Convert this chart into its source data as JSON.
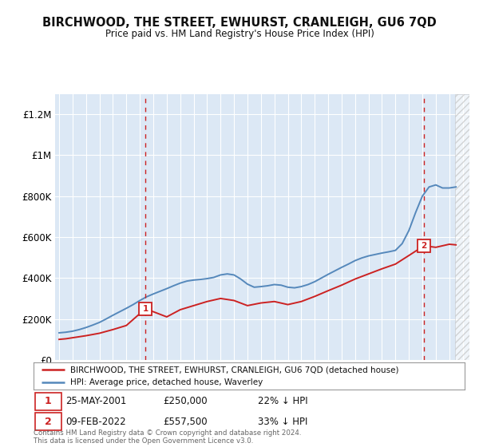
{
  "title": "BIRCHWOOD, THE STREET, EWHURST, CRANLEIGH, GU6 7QD",
  "subtitle": "Price paid vs. HM Land Registry's House Price Index (HPI)",
  "background_color": "#ffffff",
  "plot_bg_color": "#dce8f5",
  "grid_color": "#ffffff",
  "hpi_color": "#5588bb",
  "price_color": "#cc2222",
  "annotation1_date": "25-MAY-2001",
  "annotation1_price": "£250,000",
  "annotation1_label": "22% ↓ HPI",
  "annotation2_date": "09-FEB-2022",
  "annotation2_price": "£557,500",
  "annotation2_label": "33% ↓ HPI",
  "legend_line1": "BIRCHWOOD, THE STREET, EWHURST, CRANLEIGH, GU6 7QD (detached house)",
  "legend_line2": "HPI: Average price, detached house, Waverley",
  "footer": "Contains HM Land Registry data © Crown copyright and database right 2024.\nThis data is licensed under the Open Government Licence v3.0.",
  "ylim": [
    0,
    1300000
  ],
  "yticks": [
    0,
    200000,
    400000,
    600000,
    800000,
    1000000,
    1200000
  ],
  "ytick_labels": [
    "£0",
    "£200K",
    "£400K",
    "£600K",
    "£800K",
    "£1M",
    "£1.2M"
  ],
  "hpi_x": [
    1995.0,
    1995.5,
    1996.0,
    1996.5,
    1997.0,
    1997.5,
    1998.0,
    1998.5,
    1999.0,
    1999.5,
    2000.0,
    2000.5,
    2001.0,
    2001.5,
    2002.0,
    2002.5,
    2003.0,
    2003.5,
    2004.0,
    2004.5,
    2005.0,
    2005.5,
    2006.0,
    2006.5,
    2007.0,
    2007.5,
    2008.0,
    2008.5,
    2009.0,
    2009.5,
    2010.0,
    2010.5,
    2011.0,
    2011.5,
    2012.0,
    2012.5,
    2013.0,
    2013.5,
    2014.0,
    2014.5,
    2015.0,
    2015.5,
    2016.0,
    2016.5,
    2017.0,
    2017.5,
    2018.0,
    2018.5,
    2019.0,
    2019.5,
    2020.0,
    2020.5,
    2021.0,
    2021.5,
    2022.0,
    2022.5,
    2023.0,
    2023.5,
    2024.0,
    2024.5
  ],
  "hpi_y": [
    132000,
    135000,
    140000,
    148000,
    158000,
    170000,
    183000,
    200000,
    218000,
    235000,
    252000,
    270000,
    290000,
    308000,
    322000,
    335000,
    348000,
    362000,
    375000,
    385000,
    390000,
    393000,
    397000,
    403000,
    415000,
    420000,
    415000,
    395000,
    370000,
    355000,
    358000,
    362000,
    368000,
    365000,
    355000,
    352000,
    358000,
    368000,
    382000,
    400000,
    418000,
    435000,
    452000,
    468000,
    485000,
    498000,
    508000,
    515000,
    522000,
    528000,
    535000,
    568000,
    632000,
    720000,
    800000,
    845000,
    855000,
    840000,
    840000,
    845000
  ],
  "price_x": [
    1995.0,
    1995.5,
    1996.0,
    1997.0,
    1998.0,
    1999.0,
    2000.0,
    2001.416,
    2003.0,
    2004.0,
    2005.0,
    2006.0,
    2007.0,
    2008.0,
    2009.0,
    2010.0,
    2011.0,
    2012.0,
    2013.0,
    2014.0,
    2015.0,
    2016.0,
    2017.0,
    2018.0,
    2019.0,
    2020.0,
    2021.0,
    2022.116,
    2023.0,
    2024.0,
    2024.5
  ],
  "price_y": [
    100000,
    103000,
    108000,
    118000,
    130000,
    148000,
    168000,
    250000,
    210000,
    245000,
    265000,
    285000,
    300000,
    290000,
    265000,
    278000,
    285000,
    270000,
    285000,
    310000,
    338000,
    365000,
    395000,
    420000,
    445000,
    468000,
    510000,
    557500,
    550000,
    565000,
    562000
  ],
  "anno1_x": 2001.416,
  "anno1_y": 250000,
  "anno2_x": 2022.116,
  "anno2_y": 557500,
  "hatch_xstart": 2024.42,
  "hatch_xend": 2025.6,
  "xlim": [
    1994.7,
    2025.5
  ],
  "xticks": [
    1995,
    1996,
    1997,
    1998,
    1999,
    2000,
    2001,
    2002,
    2003,
    2004,
    2005,
    2006,
    2007,
    2008,
    2009,
    2010,
    2011,
    2012,
    2013,
    2014,
    2015,
    2016,
    2017,
    2018,
    2019,
    2020,
    2021,
    2022,
    2023,
    2024,
    2025
  ]
}
